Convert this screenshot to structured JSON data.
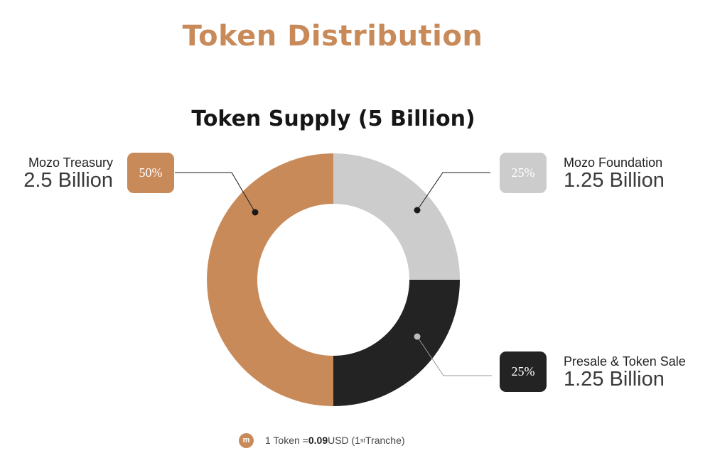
{
  "page": {
    "title": "Token Distribution"
  },
  "chart_data": {
    "type": "pie",
    "title": "Token Supply (5 Billion)",
    "donut": true,
    "series": [
      {
        "name": "Mozo Treasury",
        "value": 50,
        "label": "50%",
        "amount": "2.5 Billion",
        "color": "#c98a5a"
      },
      {
        "name": "Mozo Foundation",
        "value": 25,
        "label": "25%",
        "amount": "1.25 Billion",
        "color": "#cccccc"
      },
      {
        "name": "Presale & Token Sale",
        "value": 25,
        "label": "25%",
        "amount": "1.25 Billion",
        "color": "#232323"
      }
    ]
  },
  "footer": {
    "coin_icon": "mozo-coin-icon",
    "coin_glyph": "m",
    "prefix": "1 Token = ",
    "price": "0.09",
    "currency": " USD (1",
    "ordinal": "st",
    "suffix": " Tranche)"
  }
}
